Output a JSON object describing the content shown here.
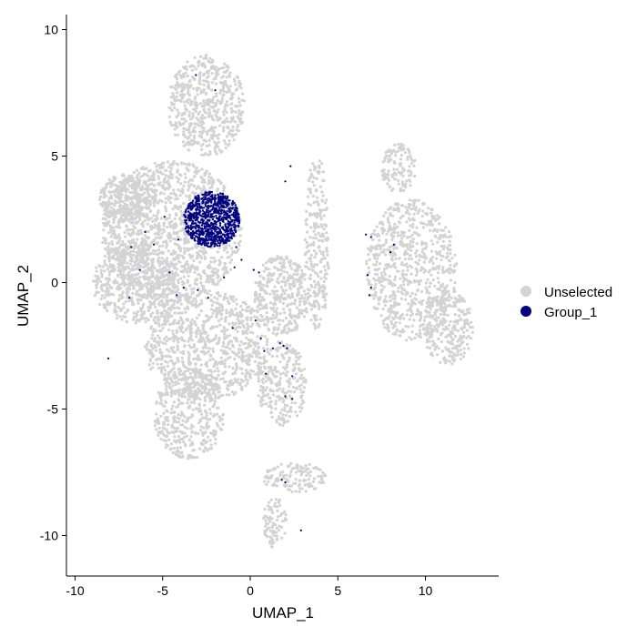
{
  "chart_data": {
    "type": "scatter",
    "title": "",
    "xlabel": "UMAP_1",
    "ylabel": "UMAP_2",
    "xlim": [
      -10.5,
      14.0
    ],
    "ylim": [
      -11.5,
      10.5
    ],
    "xticks": [
      -10,
      -5,
      0,
      5,
      10
    ],
    "xtick_labels": [
      "-10",
      "-5",
      "0",
      "5",
      "10"
    ],
    "yticks": [
      -10,
      -5,
      0,
      5,
      10
    ],
    "ytick_labels": [
      "-10",
      "-5",
      "0",
      "5",
      "10"
    ],
    "grid": false,
    "legend_position": "right",
    "series": [
      {
        "name": "Unselected",
        "color": "#d3d3d3",
        "regions": [
          {
            "cx": -4.5,
            "cy": 2.0,
            "rx": 4.0,
            "ry": 2.8,
            "n": 1400
          },
          {
            "cx": -6.5,
            "cy": 0.0,
            "rx": 2.5,
            "ry": 1.6,
            "n": 500
          },
          {
            "cx": -2.5,
            "cy": 7.0,
            "rx": 2.2,
            "ry": 2.0,
            "n": 550
          },
          {
            "cx": 1.8,
            "cy": -0.5,
            "rx": 1.6,
            "ry": 1.6,
            "n": 350
          },
          {
            "cx": 3.8,
            "cy": 1.5,
            "rx": 0.7,
            "ry": 3.5,
            "n": 250
          },
          {
            "cx": -2.5,
            "cy": -2.5,
            "rx": 3.5,
            "ry": 2.2,
            "n": 900
          },
          {
            "cx": -3.5,
            "cy": -5.2,
            "rx": 2.0,
            "ry": 1.8,
            "n": 420
          },
          {
            "cx": 1.8,
            "cy": -4.0,
            "rx": 1.4,
            "ry": 1.7,
            "n": 260
          },
          {
            "cx": 9.2,
            "cy": 0.5,
            "rx": 2.6,
            "ry": 2.8,
            "n": 750
          },
          {
            "cx": 11.3,
            "cy": -1.8,
            "rx": 1.4,
            "ry": 1.5,
            "n": 260
          },
          {
            "cx": 8.5,
            "cy": 4.5,
            "rx": 1.0,
            "ry": 1.0,
            "n": 120
          },
          {
            "cx": 2.5,
            "cy": -7.7,
            "rx": 1.8,
            "ry": 0.6,
            "n": 130
          },
          {
            "cx": 1.4,
            "cy": -9.5,
            "rx": 0.7,
            "ry": 1.0,
            "n": 90
          },
          {
            "cx": -7.0,
            "cy": 3.3,
            "rx": 1.6,
            "ry": 1.0,
            "n": 280
          }
        ]
      },
      {
        "name": "Group_1",
        "color": "#000080",
        "regions": [
          {
            "cx": -2.2,
            "cy": 2.5,
            "rx": 1.6,
            "ry": 1.1,
            "n": 900
          }
        ],
        "scatter_points": [
          [
            -6.0,
            2.0
          ],
          [
            -6.8,
            1.4
          ],
          [
            -5.5,
            1.5
          ],
          [
            -4.6,
            0.4
          ],
          [
            -4.2,
            -0.5
          ],
          [
            -3.8,
            -0.2
          ],
          [
            -3.0,
            -0.3
          ],
          [
            -2.4,
            -0.6
          ],
          [
            -1.5,
            0.2
          ],
          [
            -0.9,
            0.6
          ],
          [
            -0.5,
            0.9
          ],
          [
            0.5,
            0.4
          ],
          [
            -3.1,
            8.2
          ],
          [
            -2.0,
            7.6
          ],
          [
            2.0,
            4.0
          ],
          [
            2.3,
            4.6
          ],
          [
            -6.3,
            0.5
          ],
          [
            -6.9,
            -0.6
          ],
          [
            -8.1,
            -3.0
          ],
          [
            0.3,
            -1.5
          ],
          [
            -1.0,
            -1.8
          ],
          [
            0.6,
            -2.2
          ],
          [
            0.8,
            -2.7
          ],
          [
            1.7,
            -2.4
          ],
          [
            1.9,
            -2.5
          ],
          [
            0.9,
            -3.6
          ],
          [
            1.3,
            -2.6
          ],
          [
            2.1,
            -2.6
          ],
          [
            2.4,
            -3.7
          ],
          [
            2.0,
            -4.5
          ],
          [
            2.4,
            -4.6
          ],
          [
            6.6,
            1.9
          ],
          [
            6.9,
            1.8
          ],
          [
            8.0,
            1.2
          ],
          [
            8.2,
            1.5
          ],
          [
            6.8,
            -0.5
          ],
          [
            6.9,
            -0.2
          ],
          [
            6.7,
            0.3
          ],
          [
            1.8,
            -7.8
          ],
          [
            2.0,
            -7.9
          ],
          [
            2.9,
            -9.8
          ],
          [
            -0.8,
            1.4
          ],
          [
            0.2,
            0.5
          ],
          [
            -4.9,
            2.6
          ],
          [
            -4.1,
            1.7
          ]
        ]
      }
    ]
  }
}
